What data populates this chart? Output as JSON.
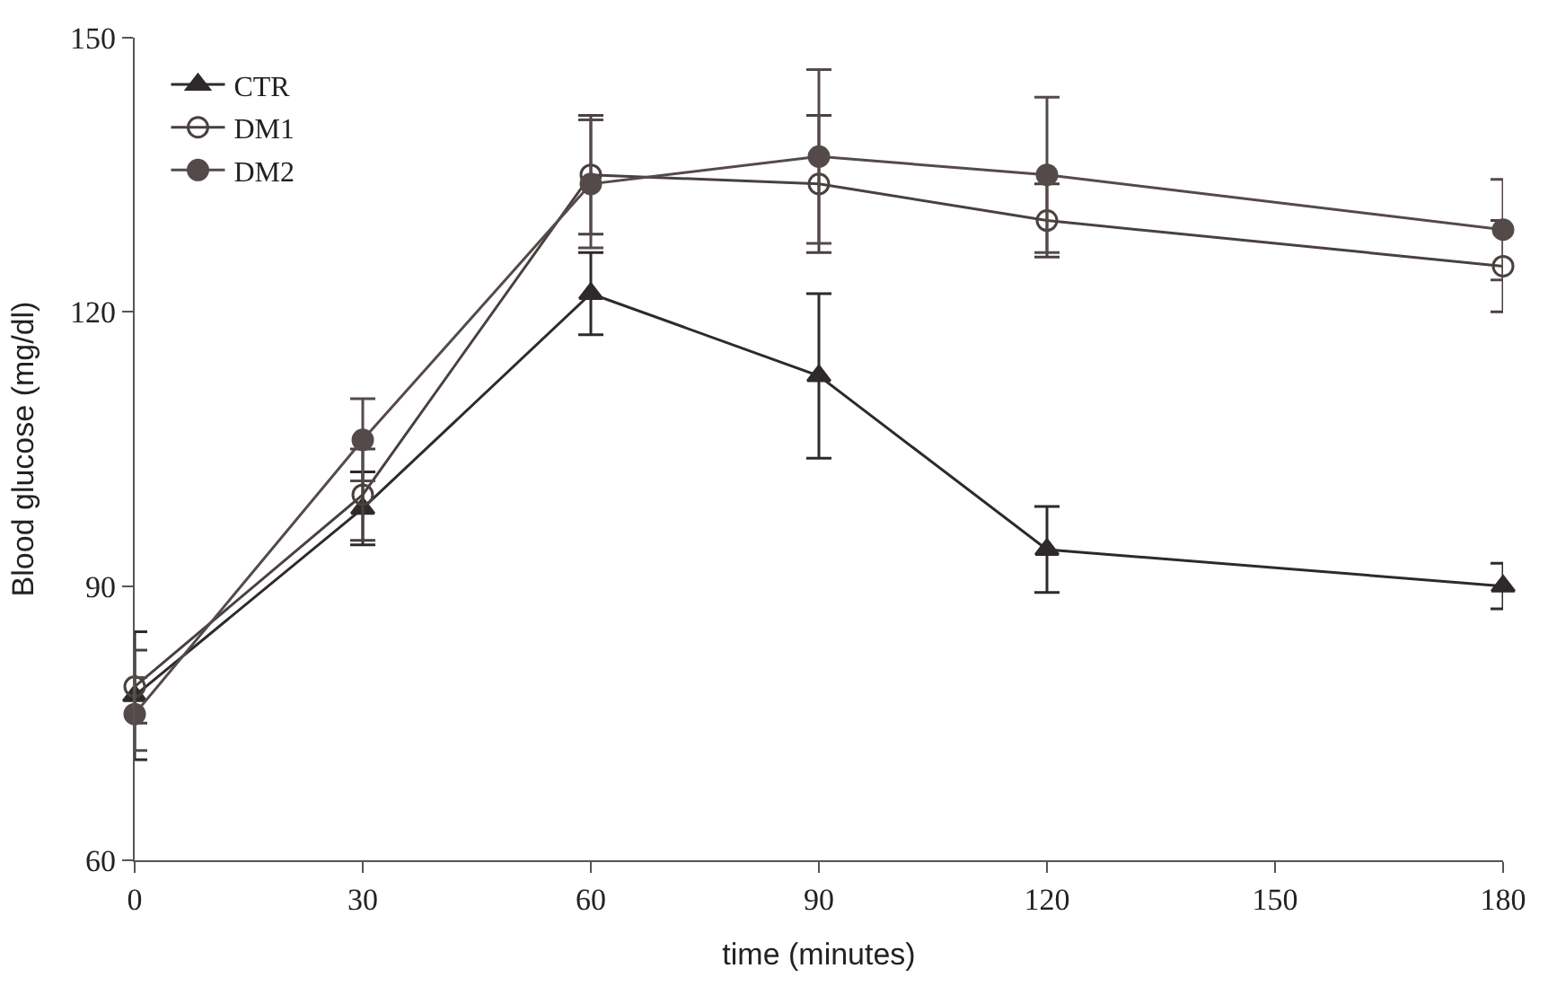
{
  "chart_data": {
    "type": "line",
    "xlabel": "time (minutes)",
    "ylabel": "Blood glucose (mg/dl)",
    "x": [
      0,
      30,
      60,
      90,
      120,
      180
    ],
    "xlim": [
      0,
      180
    ],
    "xticks": [
      0,
      30,
      60,
      90,
      120,
      150,
      180
    ],
    "ylim": [
      60,
      150
    ],
    "yticks": [
      60,
      90,
      120,
      150
    ],
    "legend": "top left",
    "series": [
      {
        "name": "CTR",
        "color": "#2e2a2a",
        "marker": "triangle",
        "values": [
          78,
          98.5,
          122,
          113,
          94,
          90
        ],
        "errors": [
          7,
          4,
          4.5,
          9,
          4.7,
          2.5
        ]
      },
      {
        "name": "DM1",
        "color": "#4a4040",
        "marker": "circle-open",
        "values": [
          79,
          100,
          135,
          134,
          130,
          125
        ],
        "errors": [
          4,
          5,
          6.5,
          7.5,
          4,
          5
        ]
      },
      {
        "name": "DM2",
        "color": "#554a4a",
        "marker": "circle",
        "values": [
          76,
          106,
          134,
          137,
          135,
          129
        ],
        "errors": [
          4,
          4.5,
          7,
          9.5,
          8.5,
          5.5
        ]
      }
    ]
  }
}
